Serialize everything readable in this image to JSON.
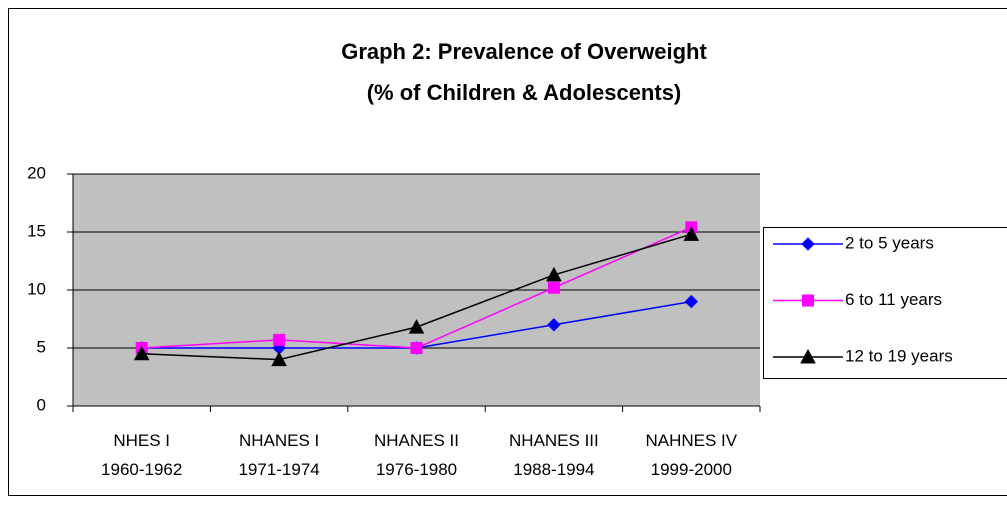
{
  "chart_data": {
    "type": "line",
    "title": [
      "Graph 2:  Prevalence of Overweight",
      "(% of Children & Adolescents)"
    ],
    "categories": [
      "NHES I 1960-1962",
      "NHANES I 1971-1974",
      "NHANES II 1976-1980",
      "NHANES III 1988-1994",
      "NAHNES IV 1999-2000"
    ],
    "series": [
      {
        "name": "2 to 5 years",
        "color": "#0000ff",
        "marker": "diamond",
        "values": [
          5,
          5,
          5,
          7,
          9
        ]
      },
      {
        "name": "6 to 11 years",
        "color": "#ff00ff",
        "marker": "square",
        "values": [
          5,
          5.7,
          5,
          10.2,
          15.4
        ]
      },
      {
        "name": "12 to 19 years",
        "color": "#000000",
        "marker": "triangle",
        "values": [
          4.5,
          4,
          6.8,
          11.3,
          14.8
        ]
      }
    ],
    "ylim": [
      0,
      20
    ],
    "yticks": [
      0,
      5,
      10,
      15,
      20
    ],
    "grid": true,
    "plot_background": "#c0c0c0",
    "legend": "right"
  }
}
